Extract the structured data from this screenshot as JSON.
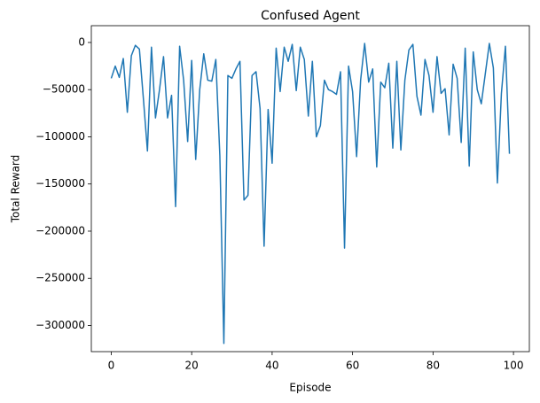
{
  "chart_data": {
    "type": "line",
    "title": "Confused Agent",
    "x_label": "Episode",
    "y_label": "Total Reward",
    "x": [
      0,
      1,
      2,
      3,
      4,
      5,
      6,
      7,
      8,
      9,
      10,
      11,
      12,
      13,
      14,
      15,
      16,
      17,
      18,
      19,
      20,
      21,
      22,
      23,
      24,
      25,
      26,
      27,
      28,
      29,
      30,
      31,
      32,
      33,
      34,
      35,
      36,
      37,
      38,
      39,
      40,
      41,
      42,
      43,
      44,
      45,
      46,
      47,
      48,
      49,
      50,
      51,
      52,
      53,
      54,
      55,
      56,
      57,
      58,
      59,
      60,
      61,
      62,
      63,
      64,
      65,
      66,
      67,
      68,
      69,
      70,
      71,
      72,
      73,
      74,
      75,
      76,
      77,
      78,
      79,
      80,
      81,
      82,
      83,
      84,
      85,
      86,
      87,
      88,
      89,
      90,
      91,
      92,
      93,
      94,
      95,
      96,
      97,
      98,
      99
    ],
    "series": [
      {
        "name": "Total Reward",
        "color": "#1f77b4",
        "values": [
          -38000,
          -25000,
          -37000,
          -17000,
          -74000,
          -14000,
          -3000,
          -7000,
          -60000,
          -115000,
          -5000,
          -80000,
          -50000,
          -15000,
          -80000,
          -56000,
          -174000,
          -4000,
          -40000,
          -105000,
          -19000,
          -124000,
          -50000,
          -12000,
          -40000,
          -41000,
          -18000,
          -120000,
          -319000,
          -35000,
          -38000,
          -28000,
          -20000,
          -167000,
          -162000,
          -35000,
          -31000,
          -70000,
          -216000,
          -71000,
          -128000,
          -6000,
          -52000,
          -5000,
          -20000,
          -2000,
          -51000,
          -5000,
          -18000,
          -78000,
          -20000,
          -100000,
          -88000,
          -40000,
          -50000,
          -52000,
          -55000,
          -31000,
          -218000,
          -25000,
          -52000,
          -121000,
          -40000,
          -1000,
          -42000,
          -28000,
          -132000,
          -42000,
          -48000,
          -22000,
          -112000,
          -20000,
          -114000,
          -40000,
          -8000,
          -2000,
          -57000,
          -77000,
          -18000,
          -35000,
          -74000,
          -15000,
          -54000,
          -49000,
          -98000,
          -23000,
          -38000,
          -106000,
          -6000,
          -131000,
          -10000,
          -50000,
          -65000,
          -33000,
          -1000,
          -27000,
          -149000,
          -54000,
          -4000,
          -118000
        ]
      }
    ],
    "xlim": [
      -4.95,
      103.95
    ],
    "ylim": [
      -327700,
      17800
    ],
    "xticks": [
      0,
      20,
      40,
      60,
      80,
      100
    ],
    "yticks": [
      0,
      {
        "value": -50000,
        "label": "−50000"
      },
      {
        "value": -100000,
        "label": "−100000"
      },
      {
        "value": -150000,
        "label": "−150000"
      },
      {
        "value": -200000,
        "label": "−200000"
      },
      {
        "value": -250000,
        "label": "−250000"
      },
      {
        "value": -300000,
        "label": "−300000"
      }
    ]
  }
}
